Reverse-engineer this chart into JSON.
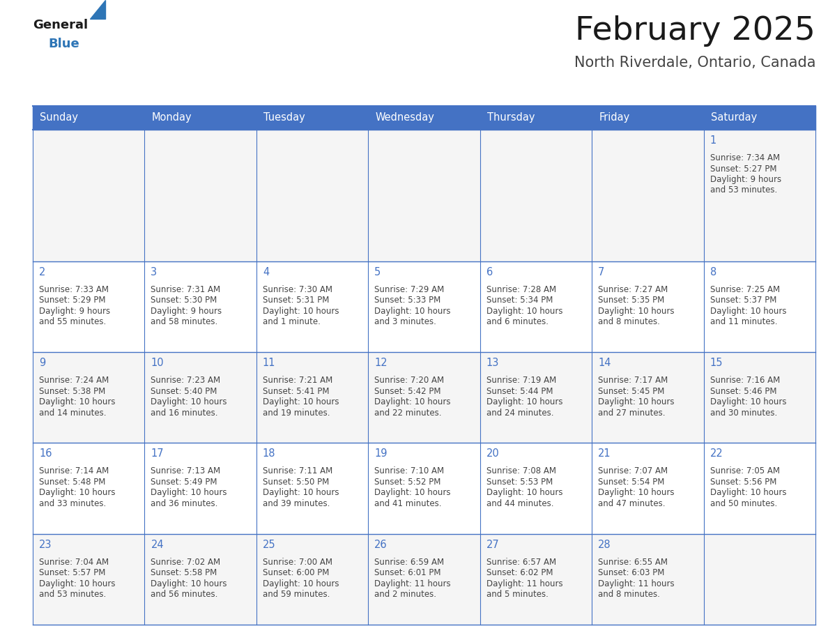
{
  "title": "February 2025",
  "subtitle": "North Riverdale, Ontario, Canada",
  "days_of_week": [
    "Sunday",
    "Monday",
    "Tuesday",
    "Wednesday",
    "Thursday",
    "Friday",
    "Saturday"
  ],
  "header_color": "#4472C4",
  "header_text_color": "#FFFFFF",
  "border_color": "#4472C4",
  "row_border_color": "#4472C4",
  "title_color": "#1a1a1a",
  "subtitle_color": "#444444",
  "day_num_color": "#4472C4",
  "info_color": "#444444",
  "cell_bg_odd": "#F5F5F5",
  "cell_bg_even": "#FFFFFF",
  "logo_general_color": "#1a1a1a",
  "logo_blue_color": "#2E75B6",
  "calendar": [
    [
      null,
      null,
      null,
      null,
      null,
      null,
      {
        "day": 1,
        "sunrise": "7:34 AM",
        "sunset": "5:27 PM",
        "daylight": "9 hours and 53 minutes."
      }
    ],
    [
      {
        "day": 2,
        "sunrise": "7:33 AM",
        "sunset": "5:29 PM",
        "daylight": "9 hours and 55 minutes."
      },
      {
        "day": 3,
        "sunrise": "7:31 AM",
        "sunset": "5:30 PM",
        "daylight": "9 hours and 58 minutes."
      },
      {
        "day": 4,
        "sunrise": "7:30 AM",
        "sunset": "5:31 PM",
        "daylight": "10 hours and 1 minute."
      },
      {
        "day": 5,
        "sunrise": "7:29 AM",
        "sunset": "5:33 PM",
        "daylight": "10 hours and 3 minutes."
      },
      {
        "day": 6,
        "sunrise": "7:28 AM",
        "sunset": "5:34 PM",
        "daylight": "10 hours and 6 minutes."
      },
      {
        "day": 7,
        "sunrise": "7:27 AM",
        "sunset": "5:35 PM",
        "daylight": "10 hours and 8 minutes."
      },
      {
        "day": 8,
        "sunrise": "7:25 AM",
        "sunset": "5:37 PM",
        "daylight": "10 hours and 11 minutes."
      }
    ],
    [
      {
        "day": 9,
        "sunrise": "7:24 AM",
        "sunset": "5:38 PM",
        "daylight": "10 hours and 14 minutes."
      },
      {
        "day": 10,
        "sunrise": "7:23 AM",
        "sunset": "5:40 PM",
        "daylight": "10 hours and 16 minutes."
      },
      {
        "day": 11,
        "sunrise": "7:21 AM",
        "sunset": "5:41 PM",
        "daylight": "10 hours and 19 minutes."
      },
      {
        "day": 12,
        "sunrise": "7:20 AM",
        "sunset": "5:42 PM",
        "daylight": "10 hours and 22 minutes."
      },
      {
        "day": 13,
        "sunrise": "7:19 AM",
        "sunset": "5:44 PM",
        "daylight": "10 hours and 24 minutes."
      },
      {
        "day": 14,
        "sunrise": "7:17 AM",
        "sunset": "5:45 PM",
        "daylight": "10 hours and 27 minutes."
      },
      {
        "day": 15,
        "sunrise": "7:16 AM",
        "sunset": "5:46 PM",
        "daylight": "10 hours and 30 minutes."
      }
    ],
    [
      {
        "day": 16,
        "sunrise": "7:14 AM",
        "sunset": "5:48 PM",
        "daylight": "10 hours and 33 minutes."
      },
      {
        "day": 17,
        "sunrise": "7:13 AM",
        "sunset": "5:49 PM",
        "daylight": "10 hours and 36 minutes."
      },
      {
        "day": 18,
        "sunrise": "7:11 AM",
        "sunset": "5:50 PM",
        "daylight": "10 hours and 39 minutes."
      },
      {
        "day": 19,
        "sunrise": "7:10 AM",
        "sunset": "5:52 PM",
        "daylight": "10 hours and 41 minutes."
      },
      {
        "day": 20,
        "sunrise": "7:08 AM",
        "sunset": "5:53 PM",
        "daylight": "10 hours and 44 minutes."
      },
      {
        "day": 21,
        "sunrise": "7:07 AM",
        "sunset": "5:54 PM",
        "daylight": "10 hours and 47 minutes."
      },
      {
        "day": 22,
        "sunrise": "7:05 AM",
        "sunset": "5:56 PM",
        "daylight": "10 hours and 50 minutes."
      }
    ],
    [
      {
        "day": 23,
        "sunrise": "7:04 AM",
        "sunset": "5:57 PM",
        "daylight": "10 hours and 53 minutes."
      },
      {
        "day": 24,
        "sunrise": "7:02 AM",
        "sunset": "5:58 PM",
        "daylight": "10 hours and 56 minutes."
      },
      {
        "day": 25,
        "sunrise": "7:00 AM",
        "sunset": "6:00 PM",
        "daylight": "10 hours and 59 minutes."
      },
      {
        "day": 26,
        "sunrise": "6:59 AM",
        "sunset": "6:01 PM",
        "daylight": "11 hours and 2 minutes."
      },
      {
        "day": 27,
        "sunrise": "6:57 AM",
        "sunset": "6:02 PM",
        "daylight": "11 hours and 5 minutes."
      },
      {
        "day": 28,
        "sunrise": "6:55 AM",
        "sunset": "6:03 PM",
        "daylight": "11 hours and 8 minutes."
      },
      null
    ]
  ]
}
